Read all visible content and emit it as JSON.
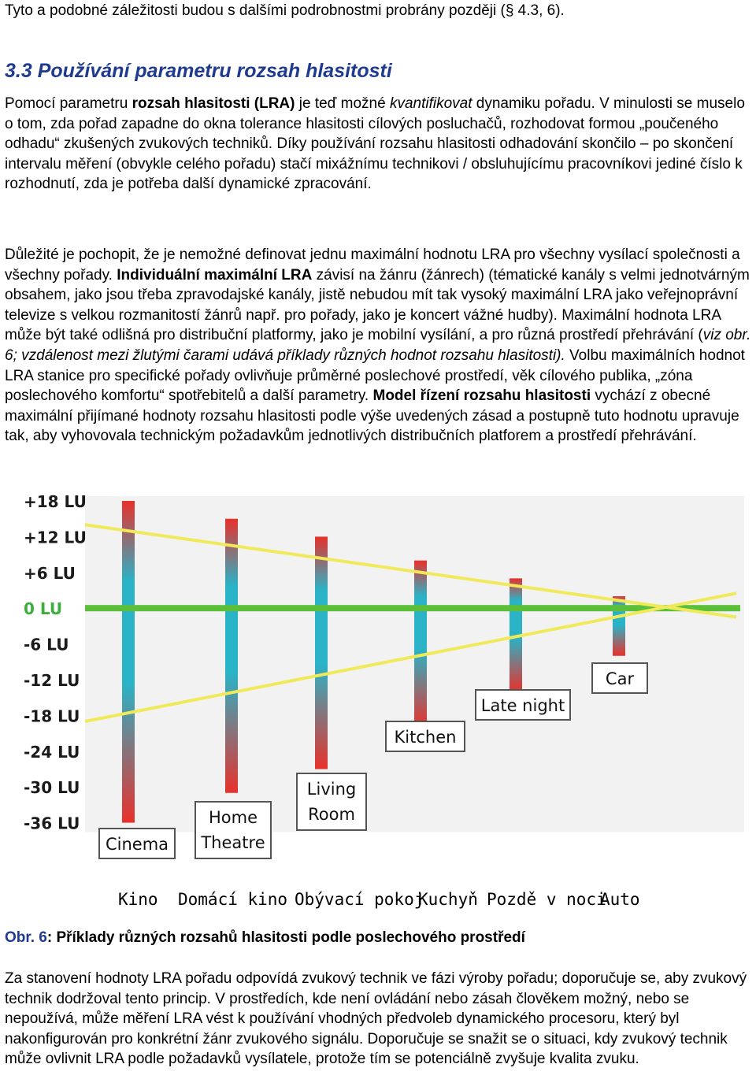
{
  "top_line": "Tyto a podobné záležitosti budou s dalšími podrobnostmi probrány později (§ 4.3, 6).",
  "section": {
    "title": "3.3 Používání parametru rozsah hlasitosti"
  },
  "para1": {
    "a": "Pomocí parametru ",
    "b_bold": "rozsah hlasitosti (LRA)",
    "c": " je teď možné ",
    "d_italic": "kvantifikovat",
    "e": " dynamiku pořadu. V minulosti se muselo o tom, zda pořad zapadne do okna tolerance hlasitosti cílových posluchačů, rozhodovat formou „poučeného odhadu“ zkušených zvukových techniků. Díky používání rozsahu hlasitosti odhadování skončilo – po skončení intervalu měření (obvykle celého pořadu) stačí mixážnímu technikovi / obsluhujícímu pracovníkovi jediné číslo k rozhodnutí, zda je potřeba další dynamické zpracování."
  },
  "para2": {
    "a": "Důležité je pochopit, že je nemožné definovat jednu maximální hodnotu LRA pro všechny vysílací společnosti a všechny pořady. ",
    "b_bold": "Individuální maximální LRA",
    "c": " závisí na žánru (žánrech) (tématické kanály s velmi jednotvárným obsahem, jako jsou třeba zpravodajské kanály, jistě nebudou mít tak vysoký maximální LRA jako veřejnoprávní televize s velkou rozmanitostí žánrů např. pro pořady, jako je koncert vážné hudby). Maximální hodnota LRA může být také odlišná pro distribuční platformy, jako je mobilní vysílání, a pro různá prostředí přehrávání (",
    "d_italic": "viz obr. 6; vzdálenost mezi žlutými čarami udává příklady různých hodnot rozsahu hlasitosti).",
    "e": " Volbu maximálních hodnot LRA stanice pro specifické pořady ovlivňuje průměrné poslechové prostředí, věk cílového publika, „zóna poslechového komfortu“ spotřebitelů a další parametry. ",
    "f_bold": "Model řízení rozsahu hlasitosti",
    "g": " vychází z obecné maximální přijímané hodnoty rozsahu hlasitosti podle výše uvedených zásad a postupně tuto hodnotu upravuje tak, aby vyhovovala technickým požadavkům jednotlivých distribučních platforem a prostředí přehrávání."
  },
  "figure": {
    "y_labels": [
      "+18 LU",
      "+12 LU",
      "+6 LU",
      "0 LU",
      "-6 LU",
      "-12 LU",
      "-18 LU",
      "-24 LU",
      "-30 LU",
      "-36 LU"
    ],
    "bar_labels": [
      "Cinema",
      "Home\nTheatre",
      "Living\nRoom",
      "Kitchen",
      "Late night",
      "Car"
    ],
    "bar_ranges_lu": [
      [
        18,
        -36
      ],
      [
        15,
        -31
      ],
      [
        12,
        -27
      ],
      [
        8,
        -20
      ],
      [
        5,
        -14
      ],
      [
        2,
        -8
      ]
    ],
    "czech_labels": [
      "Kino",
      "Domácí kino",
      "Obývací pokoj",
      "Kuchyň",
      "Pozdě v noci",
      "Auto"
    ],
    "colors": {
      "red": "#e8312b",
      "teal": "#2ab3c7",
      "green": "#5cbf3a",
      "yellow": "#f0ea5a",
      "zero_label": "#3cae3c"
    }
  },
  "caption": {
    "a": "Obr. 6",
    "b": ": Příklady různých rozsahů hlasitosti podle poslechového prostředí"
  },
  "para3": "Za stanovení hodnoty LRA pořadu odpovídá zvukový technik ve fázi výroby pořadu; doporučuje se, aby zvukový technik dodržoval tento princip. V prostředích, kde není ovládání nebo zásah člověkem možný, nebo se nepoužívá, může měření LRA vést k používání vhodných předvoleb dynamického procesoru, který byl nakonfigurován pro konkrétní žánr zvukového signálu. Doporučuje se snažit se o situaci, kdy zvukový technik může ovlivnit LRA podle požadavků vysílatele, protože tím se potenciálně zvyšuje kvalita zvuku."
}
